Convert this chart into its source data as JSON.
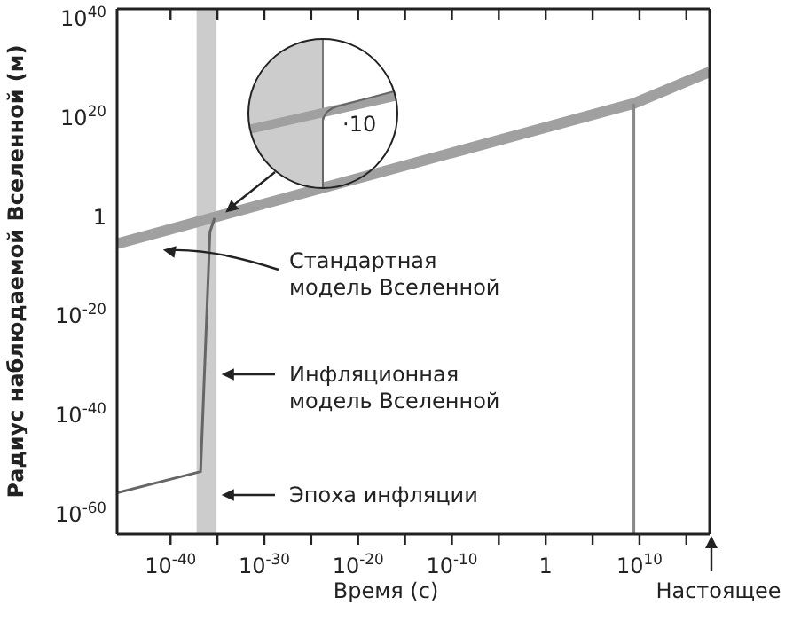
{
  "chart_data": {
    "type": "line",
    "xlabel": "Время (с)",
    "ylabel": "Радиус наблюдаемой Вселенной (м)",
    "log": "xy",
    "xlim": [
      2e-46,
      3e+17
    ],
    "ylim": [
      1e-64,
      1e+42
    ],
    "xticks": [
      {
        "value": 1e-40,
        "label": "10$^{-40}$"
      },
      {
        "value": 1e-35,
        "label": null
      },
      {
        "value": 1e-30,
        "label": "10$^{-30}$"
      },
      {
        "value": 1e-25,
        "label": null
      },
      {
        "value": 1e-20,
        "label": "10$^{-20}$"
      },
      {
        "value": 1e-15,
        "label": null
      },
      {
        "value": 1e-10,
        "label": "10$^{-10}$"
      },
      {
        "value": 1e-05,
        "label": null
      },
      {
        "value": 1,
        "label": "1"
      },
      {
        "value": 100000.0,
        "label": null
      },
      {
        "value": 10000000000.0,
        "label": "10$^{10}$"
      },
      {
        "value": 1000000000000000.0,
        "label": null
      }
    ],
    "yticks": [
      {
        "value": 1e-60,
        "label": "10$^{-60}$"
      },
      {
        "value": 1e-40,
        "label": "10$^{-40}$"
      },
      {
        "value": 1e-20,
        "label": "10$^{-20}$"
      },
      1,
      {
        "value": 1e+20,
        "label": "10$^{20}$"
      },
      {
        "value": 1e+40,
        "label": "10$^{40}$"
      }
    ],
    "series": [
      {
        "name": "Стандартная модель Вселенной",
        "color": "#a0a0a0",
        "x": [
          2e-46,
          2500000000.0,
          3e+17
        ],
        "values": [
          4e-06,
          8e+22,
          2e+29
        ]
      },
      {
        "name": "Инфляционная модель Вселенной",
        "color": "#666666",
        "x": [
          2e-46,
          1.6e-37,
          1.6e-36,
          5e-36
        ],
        "values": [
          2e-56,
          4e-52,
          0.001,
          0.6
        ]
      },
      {
        "color": "#888888",
        "x": [
          2500000000.0,
          2500000000.0
        ],
        "values": [
          1e-64,
          8e+22
        ]
      }
    ],
    "bands": [
      {
        "axis": "x",
        "from": 6e-38,
        "to": 8e-36,
        "label": "Эпоха инфляции",
        "color": "#cccccc"
      }
    ],
    "annotations": [
      "·10",
      "Настоящее"
    ]
  }
}
